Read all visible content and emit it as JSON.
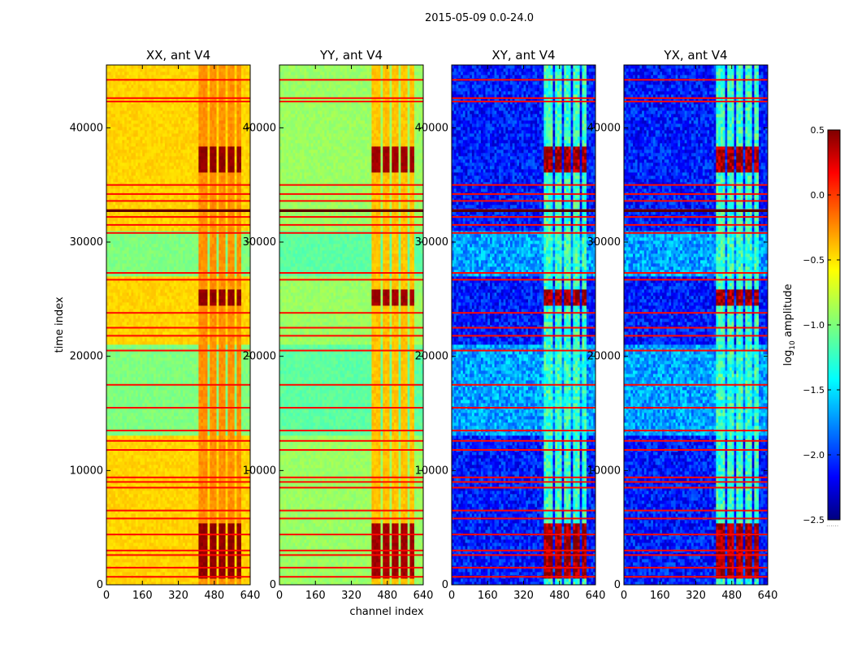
{
  "chart_data": {
    "type": "heatmap",
    "title": "2015-05-09 0.0-24.0",
    "xlabel": "channel index",
    "ylabel": "time index",
    "xlim": [
      0,
      640
    ],
    "ylim": [
      0,
      45500
    ],
    "xticks": [
      0,
      160,
      320,
      480,
      640
    ],
    "yticks": [
      0,
      10000,
      20000,
      30000,
      40000
    ],
    "panels": [
      {
        "title": "XX, ant V4",
        "base_level": -0.5,
        "band_mid_level": -1.0,
        "rfi_column_level": -0.3,
        "rfi_burst_level": 0.45
      },
      {
        "title": "YY, ant V4",
        "base_level": -0.92,
        "band_mid_level": -1.1,
        "rfi_column_level": -0.45,
        "rfi_burst_level": 0.4
      },
      {
        "title": "XY, ant V4",
        "base_level": -2.05,
        "band_mid_level": -1.65,
        "rfi_column_level": -1.2,
        "rfi_burst_level": 0.4
      },
      {
        "title": "YX, ant V4",
        "base_level": -2.05,
        "band_mid_level": -1.65,
        "rfi_column_level": -1.2,
        "rfi_burst_level": 0.4
      }
    ],
    "rfi_channel_ranges": [
      [
        410,
        450
      ],
      [
        460,
        490
      ],
      [
        500,
        530
      ],
      [
        540,
        565
      ],
      [
        580,
        600
      ]
    ],
    "rfi_time_bursts": [
      [
        700,
        5500
      ],
      [
        24500,
        26000
      ],
      [
        36000,
        38500
      ]
    ],
    "flagged_time_rows": [
      700,
      1500,
      2600,
      3000,
      4400,
      5800,
      6500,
      8500,
      9000,
      9400,
      11800,
      12600,
      13500,
      15500,
      17500,
      20500,
      21800,
      22500,
      23800,
      26700,
      27300,
      30800,
      31500,
      32200,
      32800,
      33600,
      34200,
      35000,
      42300,
      42600,
      44200
    ],
    "colorbar": {
      "label": "log",
      "label_subscript": "10",
      "label_suffix": " amplitude",
      "range": [
        -2.5,
        0.5
      ],
      "ticks": [
        "0.5",
        "0.0",
        "−0.5",
        "−1.0",
        "−1.5",
        "−2.0",
        "−2.5"
      ],
      "tick_values": [
        0.5,
        0.0,
        -0.5,
        -1.0,
        -1.5,
        -2.0,
        -2.5
      ],
      "colormap": "jet"
    }
  }
}
